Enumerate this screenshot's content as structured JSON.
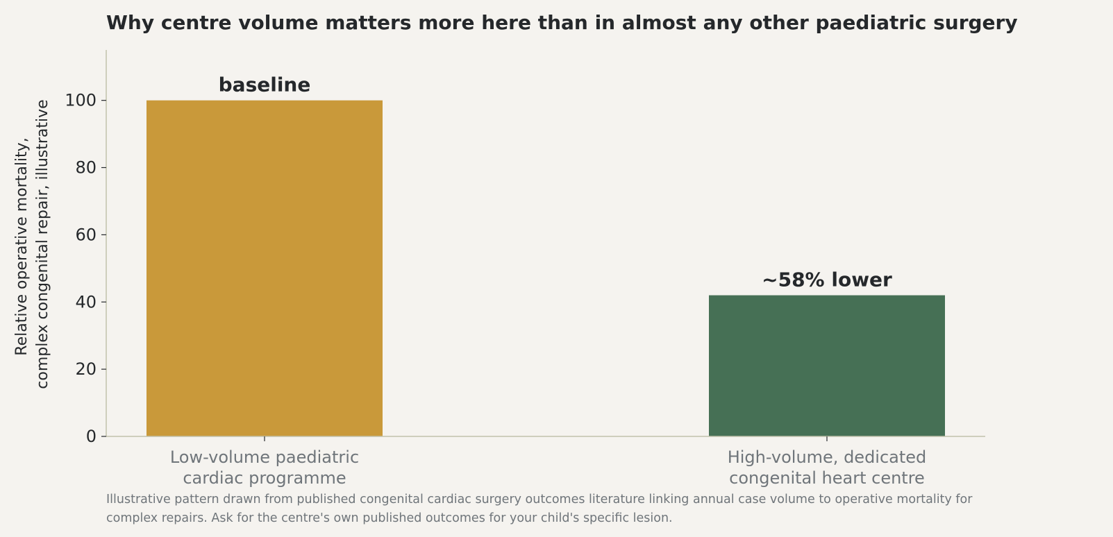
{
  "chart_data": {
    "type": "bar",
    "title": "Why centre volume matters more here than in almost any other paediatric surgery",
    "ylabel_lines": [
      "Relative operative mortality,",
      "complex congenital repair, illustrative"
    ],
    "xlabel": "",
    "categories": [
      [
        "Low-volume paediatric",
        "cardiac programme"
      ],
      [
        "High-volume, dedicated",
        "congenital heart centre"
      ]
    ],
    "values": [
      100,
      42
    ],
    "data_labels": [
      "baseline",
      "~58% lower"
    ],
    "bar_colors": [
      "#c9993a",
      "#467055"
    ],
    "ylim": [
      0,
      115
    ],
    "yticks": [
      0,
      20,
      40,
      60,
      80,
      100
    ],
    "grid": false,
    "legend": "none",
    "axis_color": "#c2c1ac",
    "footnote_lines": [
      "Illustrative pattern drawn from published congenital cardiac surgery outcomes literature linking annual case volume to operative mortality for",
      "complex repairs. Ask for the centre's own published outcomes for your child's specific lesion."
    ]
  }
}
